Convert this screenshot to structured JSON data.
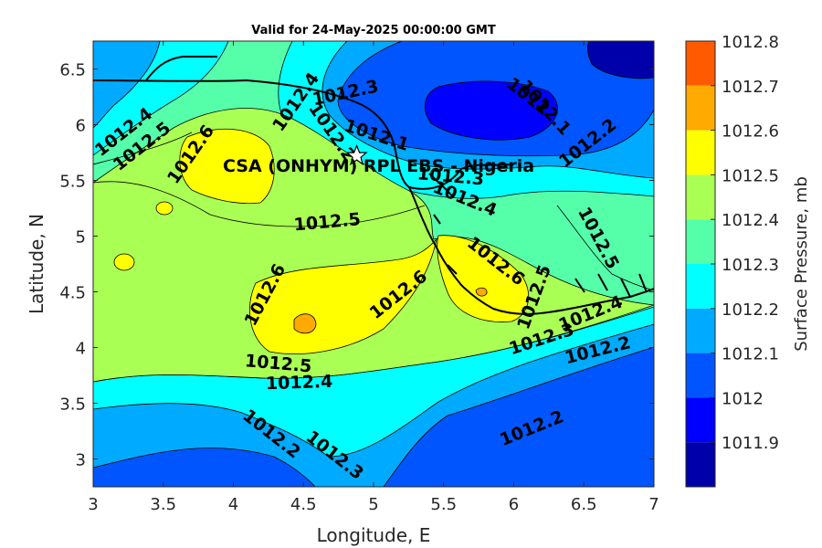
{
  "map": {
    "title": "Valid for 24-May-2025 00:00:00 GMT",
    "xlabel": "Longitude, E",
    "ylabel": "Latitude, N",
    "xlim": [
      3,
      7
    ],
    "ylim": [
      2.75,
      6.75
    ],
    "xticks": [
      "3",
      "3.5",
      "4",
      "4.5",
      "5",
      "5.5",
      "6",
      "6.5",
      "7"
    ],
    "yticks": [
      "3",
      "3.5",
      "4",
      "4.5",
      "5",
      "5.5",
      "6",
      "6.5"
    ],
    "site_label": "CSA (ONHYM) RPL EBS - Nigeria",
    "site_marker": {
      "lon": 4.88,
      "lat": 5.72,
      "icon": "star-icon"
    },
    "contour_labels": [
      {
        "text": "1012.4",
        "lon": 3.22,
        "lat": 5.93,
        "rot": -38
      },
      {
        "text": "1012.5",
        "lon": 3.35,
        "lat": 5.8,
        "rot": -38
      },
      {
        "text": "1012.6",
        "lon": 3.7,
        "lat": 5.73,
        "rot": -55
      },
      {
        "text": "1012.4",
        "lon": 4.45,
        "lat": 6.2,
        "rot": -55
      },
      {
        "text": "1012.3",
        "lon": 4.8,
        "lat": 6.28,
        "rot": -12
      },
      {
        "text": "1012.2",
        "lon": 4.7,
        "lat": 5.93,
        "rot": 55
      },
      {
        "text": "1012.1",
        "lon": 5.02,
        "lat": 5.9,
        "rot": 18
      },
      {
        "text": "1012",
        "lon": 6.1,
        "lat": 6.25,
        "rot": 38
      },
      {
        "text": "1012.1",
        "lon": 6.22,
        "lat": 6.15,
        "rot": 48
      },
      {
        "text": "1012.2",
        "lon": 6.53,
        "lat": 5.83,
        "rot": -38
      },
      {
        "text": "1012.3",
        "lon": 5.55,
        "lat": 5.53,
        "rot": 5
      },
      {
        "text": "1012.4",
        "lon": 5.65,
        "lat": 5.33,
        "rot": 22
      },
      {
        "text": "1012.5",
        "lon": 4.67,
        "lat": 5.12,
        "rot": -5
      },
      {
        "text": "1012.5",
        "lon": 6.6,
        "lat": 4.98,
        "rot": 62
      },
      {
        "text": "1012.6",
        "lon": 5.87,
        "lat": 4.77,
        "rot": 38
      },
      {
        "text": "1012.6",
        "lon": 4.23,
        "lat": 4.47,
        "rot": -62
      },
      {
        "text": "1012.6",
        "lon": 5.18,
        "lat": 4.47,
        "rot": -38
      },
      {
        "text": "1012.5",
        "lon": 6.15,
        "lat": 4.45,
        "rot": -70
      },
      {
        "text": "1012.4",
        "lon": 6.55,
        "lat": 4.3,
        "rot": -22
      },
      {
        "text": "1012.3",
        "lon": 6.2,
        "lat": 4.07,
        "rot": -18
      },
      {
        "text": "1012.2",
        "lon": 6.6,
        "lat": 3.97,
        "rot": -14
      },
      {
        "text": "1012.5",
        "lon": 4.32,
        "lat": 3.85,
        "rot": 5
      },
      {
        "text": "1012.4",
        "lon": 4.47,
        "lat": 3.68,
        "rot": -2
      },
      {
        "text": "1012.2",
        "lon": 4.27,
        "lat": 3.22,
        "rot": 38
      },
      {
        "text": "1012.3",
        "lon": 4.72,
        "lat": 3.03,
        "rot": 38
      },
      {
        "text": "1012.2",
        "lon": 6.13,
        "lat": 3.27,
        "rot": -22
      }
    ]
  },
  "colorbar": {
    "label": "Surface Pressure, mb",
    "levels": [
      "1012.8",
      "1012.7",
      "1012.6",
      "1012.5",
      "1012.4",
      "1012.3",
      "1012.2",
      "1012.1",
      "1012",
      "1011.9"
    ],
    "colors": [
      "#ff5a00",
      "#ffaa00",
      "#ffff00",
      "#aaff55",
      "#55ffaa",
      "#00ffff",
      "#00aaff",
      "#0055ff",
      "#0000ff",
      "#0000aa"
    ],
    "range": [
      1011.9,
      1012.8
    ]
  }
}
